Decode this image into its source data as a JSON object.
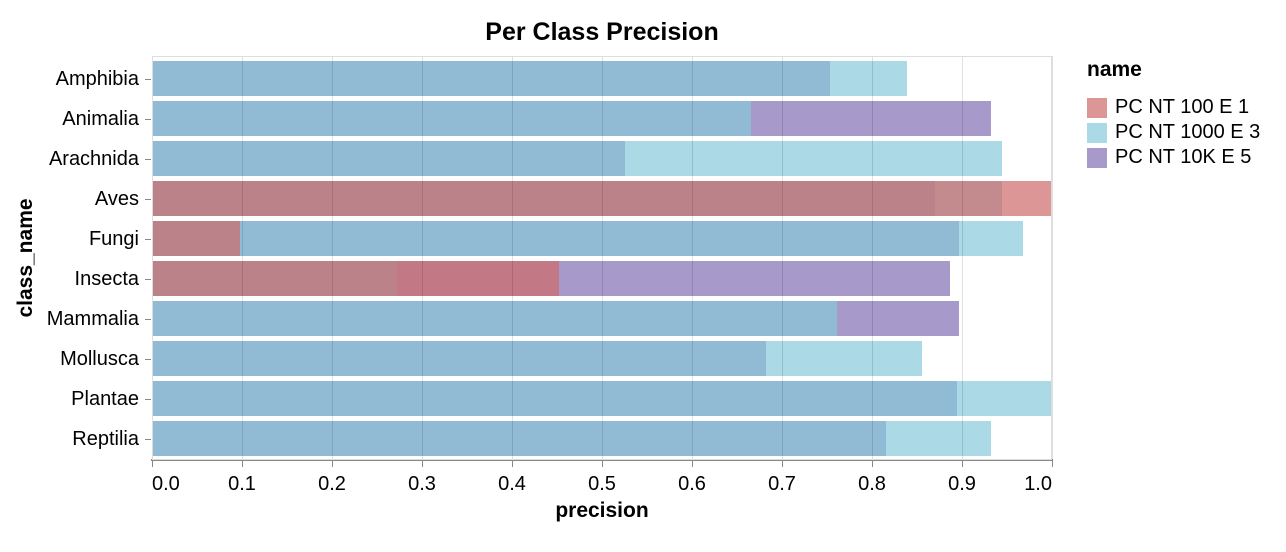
{
  "chart_data": {
    "type": "bar",
    "orientation": "horizontal",
    "layout": "layered-overlapping-bars",
    "title": "Per Class Precision",
    "xlabel": "precision",
    "ylabel": "class_name",
    "legend_title": "name",
    "legend_position": "right",
    "grid": true,
    "xlim": [
      0.0,
      1.0
    ],
    "x_ticks": [
      "0.0",
      "0.1",
      "0.2",
      "0.3",
      "0.4",
      "0.5",
      "0.6",
      "0.7",
      "0.8",
      "0.9",
      "1.0"
    ],
    "categories": [
      "Amphibia",
      "Animalia",
      "Arachnida",
      "Aves",
      "Fungi",
      "Insecta",
      "Mammalia",
      "Mollusca",
      "Plantae",
      "Reptilia"
    ],
    "series": [
      {
        "name": "PC NT 100 E 1",
        "color": "rgba(206,105,105,0.7)",
        "z": 3,
        "values": [
          null,
          null,
          null,
          1.0,
          0.098,
          0.452,
          null,
          null,
          null,
          null
        ]
      },
      {
        "name": "PC NT 1000 E 3",
        "color": "rgba(135,201,218,0.7)",
        "z": 2,
        "values": [
          0.839,
          0.665,
          0.944,
          0.944,
          0.968,
          0.272,
          0.761,
          0.855,
          1.0,
          0.932
        ]
      },
      {
        "name": "PC NT 10K E 5",
        "color": "rgba(129,109,179,0.7)",
        "z": 1,
        "values": [
          0.753,
          0.932,
          0.526,
          0.87,
          0.897,
          0.887,
          0.897,
          0.682,
          0.894,
          0.815
        ]
      }
    ],
    "overlap_colors_note": {
      "lightblue_over_purple": "#90bad5",
      "all_three": "#bc8189",
      "salmon_over_purple": "#c27786",
      "salmon_over_lightblue": "#c38a8e"
    }
  },
  "colors": {
    "background": "#ffffff",
    "gridline": "#dddddd",
    "axis_domain": "#888888",
    "tick": "#888888",
    "text": "#000000"
  }
}
